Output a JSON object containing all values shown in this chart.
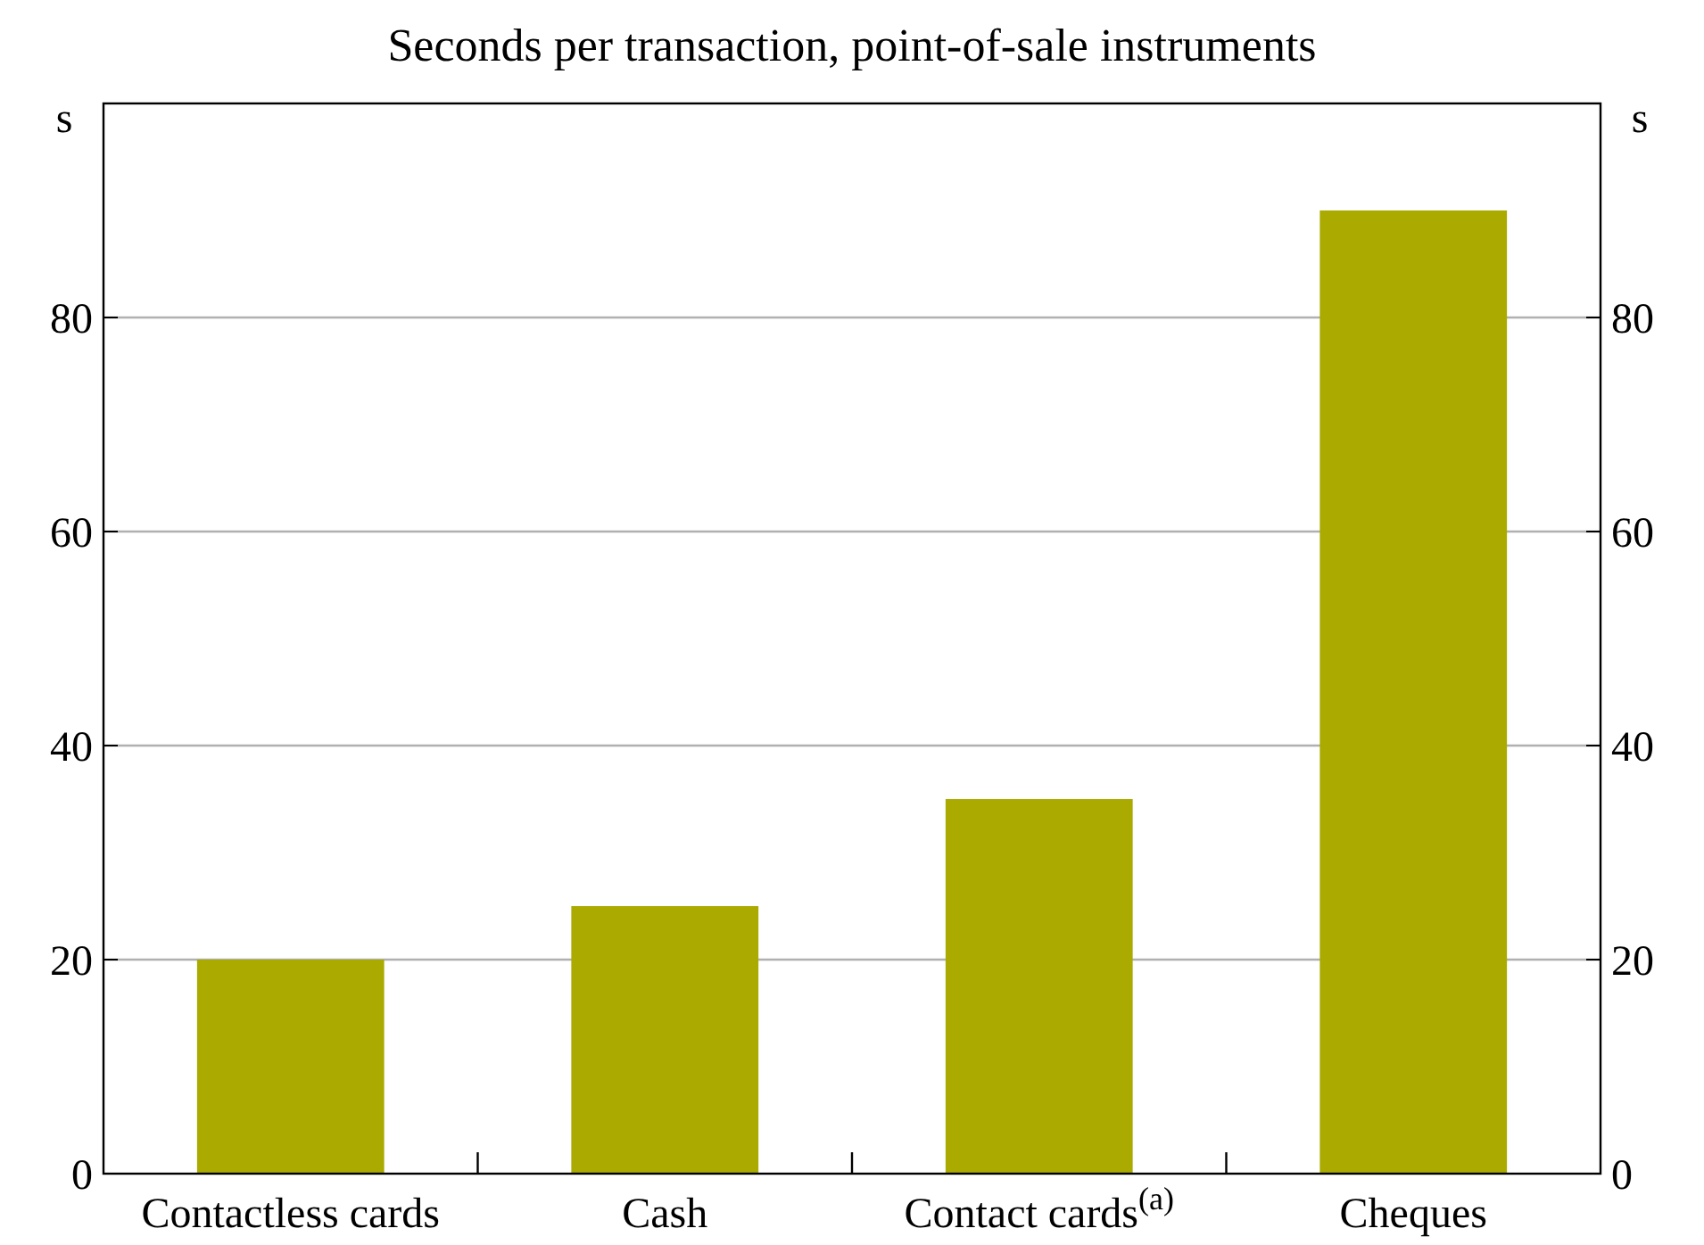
{
  "chart_data": {
    "type": "bar",
    "title": "Seconds per transaction, point-of-sale instruments",
    "categories": [
      "Contactless cards",
      "Cash",
      "Contact cards$^{(a)}$",
      "Cheques"
    ],
    "values": [
      20,
      25,
      35,
      90
    ],
    "color": "#aaaa00",
    "ylabel": "s",
    "y2label": "s",
    "ylim": [
      0,
      100
    ],
    "yticks": [
      0,
      20,
      40,
      60,
      80
    ],
    "y2lim": [
      0,
      100
    ],
    "y2ticks": [
      0,
      20,
      40,
      60,
      80
    ],
    "grid": "y"
  }
}
